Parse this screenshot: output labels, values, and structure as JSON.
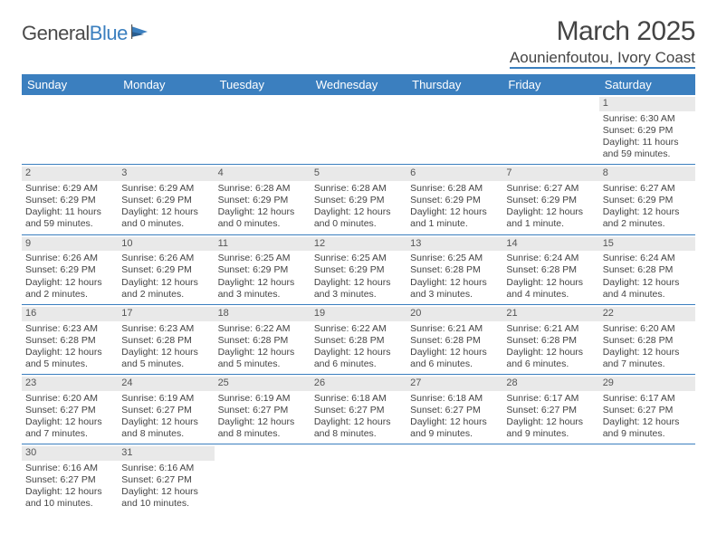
{
  "brand": {
    "name1": "General",
    "name2": "Blue"
  },
  "title": {
    "month": "March 2025",
    "location": "Aounienfoutou, Ivory Coast"
  },
  "weekdays": [
    "Sunday",
    "Monday",
    "Tuesday",
    "Wednesday",
    "Thursday",
    "Friday",
    "Saturday"
  ],
  "colors": {
    "accent": "#3b7fbf",
    "headerText": "#ffffff",
    "dayStrip": "#e9e9e9",
    "text": "#444444"
  },
  "layout": {
    "columns": 7,
    "cellFontSize": 10.5,
    "headerFontSize": 13
  },
  "weeks": [
    [
      null,
      null,
      null,
      null,
      null,
      null,
      {
        "n": "1",
        "sr": "Sunrise: 6:30 AM",
        "ss": "Sunset: 6:29 PM",
        "dl": "Daylight: 11 hours and 59 minutes."
      }
    ],
    [
      {
        "n": "2",
        "sr": "Sunrise: 6:29 AM",
        "ss": "Sunset: 6:29 PM",
        "dl": "Daylight: 11 hours and 59 minutes."
      },
      {
        "n": "3",
        "sr": "Sunrise: 6:29 AM",
        "ss": "Sunset: 6:29 PM",
        "dl": "Daylight: 12 hours and 0 minutes."
      },
      {
        "n": "4",
        "sr": "Sunrise: 6:28 AM",
        "ss": "Sunset: 6:29 PM",
        "dl": "Daylight: 12 hours and 0 minutes."
      },
      {
        "n": "5",
        "sr": "Sunrise: 6:28 AM",
        "ss": "Sunset: 6:29 PM",
        "dl": "Daylight: 12 hours and 0 minutes."
      },
      {
        "n": "6",
        "sr": "Sunrise: 6:28 AM",
        "ss": "Sunset: 6:29 PM",
        "dl": "Daylight: 12 hours and 1 minute."
      },
      {
        "n": "7",
        "sr": "Sunrise: 6:27 AM",
        "ss": "Sunset: 6:29 PM",
        "dl": "Daylight: 12 hours and 1 minute."
      },
      {
        "n": "8",
        "sr": "Sunrise: 6:27 AM",
        "ss": "Sunset: 6:29 PM",
        "dl": "Daylight: 12 hours and 2 minutes."
      }
    ],
    [
      {
        "n": "9",
        "sr": "Sunrise: 6:26 AM",
        "ss": "Sunset: 6:29 PM",
        "dl": "Daylight: 12 hours and 2 minutes."
      },
      {
        "n": "10",
        "sr": "Sunrise: 6:26 AM",
        "ss": "Sunset: 6:29 PM",
        "dl": "Daylight: 12 hours and 2 minutes."
      },
      {
        "n": "11",
        "sr": "Sunrise: 6:25 AM",
        "ss": "Sunset: 6:29 PM",
        "dl": "Daylight: 12 hours and 3 minutes."
      },
      {
        "n": "12",
        "sr": "Sunrise: 6:25 AM",
        "ss": "Sunset: 6:29 PM",
        "dl": "Daylight: 12 hours and 3 minutes."
      },
      {
        "n": "13",
        "sr": "Sunrise: 6:25 AM",
        "ss": "Sunset: 6:28 PM",
        "dl": "Daylight: 12 hours and 3 minutes."
      },
      {
        "n": "14",
        "sr": "Sunrise: 6:24 AM",
        "ss": "Sunset: 6:28 PM",
        "dl": "Daylight: 12 hours and 4 minutes."
      },
      {
        "n": "15",
        "sr": "Sunrise: 6:24 AM",
        "ss": "Sunset: 6:28 PM",
        "dl": "Daylight: 12 hours and 4 minutes."
      }
    ],
    [
      {
        "n": "16",
        "sr": "Sunrise: 6:23 AM",
        "ss": "Sunset: 6:28 PM",
        "dl": "Daylight: 12 hours and 5 minutes."
      },
      {
        "n": "17",
        "sr": "Sunrise: 6:23 AM",
        "ss": "Sunset: 6:28 PM",
        "dl": "Daylight: 12 hours and 5 minutes."
      },
      {
        "n": "18",
        "sr": "Sunrise: 6:22 AM",
        "ss": "Sunset: 6:28 PM",
        "dl": "Daylight: 12 hours and 5 minutes."
      },
      {
        "n": "19",
        "sr": "Sunrise: 6:22 AM",
        "ss": "Sunset: 6:28 PM",
        "dl": "Daylight: 12 hours and 6 minutes."
      },
      {
        "n": "20",
        "sr": "Sunrise: 6:21 AM",
        "ss": "Sunset: 6:28 PM",
        "dl": "Daylight: 12 hours and 6 minutes."
      },
      {
        "n": "21",
        "sr": "Sunrise: 6:21 AM",
        "ss": "Sunset: 6:28 PM",
        "dl": "Daylight: 12 hours and 6 minutes."
      },
      {
        "n": "22",
        "sr": "Sunrise: 6:20 AM",
        "ss": "Sunset: 6:28 PM",
        "dl": "Daylight: 12 hours and 7 minutes."
      }
    ],
    [
      {
        "n": "23",
        "sr": "Sunrise: 6:20 AM",
        "ss": "Sunset: 6:27 PM",
        "dl": "Daylight: 12 hours and 7 minutes."
      },
      {
        "n": "24",
        "sr": "Sunrise: 6:19 AM",
        "ss": "Sunset: 6:27 PM",
        "dl": "Daylight: 12 hours and 8 minutes."
      },
      {
        "n": "25",
        "sr": "Sunrise: 6:19 AM",
        "ss": "Sunset: 6:27 PM",
        "dl": "Daylight: 12 hours and 8 minutes."
      },
      {
        "n": "26",
        "sr": "Sunrise: 6:18 AM",
        "ss": "Sunset: 6:27 PM",
        "dl": "Daylight: 12 hours and 8 minutes."
      },
      {
        "n": "27",
        "sr": "Sunrise: 6:18 AM",
        "ss": "Sunset: 6:27 PM",
        "dl": "Daylight: 12 hours and 9 minutes."
      },
      {
        "n": "28",
        "sr": "Sunrise: 6:17 AM",
        "ss": "Sunset: 6:27 PM",
        "dl": "Daylight: 12 hours and 9 minutes."
      },
      {
        "n": "29",
        "sr": "Sunrise: 6:17 AM",
        "ss": "Sunset: 6:27 PM",
        "dl": "Daylight: 12 hours and 9 minutes."
      }
    ],
    [
      {
        "n": "30",
        "sr": "Sunrise: 6:16 AM",
        "ss": "Sunset: 6:27 PM",
        "dl": "Daylight: 12 hours and 10 minutes."
      },
      {
        "n": "31",
        "sr": "Sunrise: 6:16 AM",
        "ss": "Sunset: 6:27 PM",
        "dl": "Daylight: 12 hours and 10 minutes."
      },
      null,
      null,
      null,
      null,
      null
    ]
  ]
}
